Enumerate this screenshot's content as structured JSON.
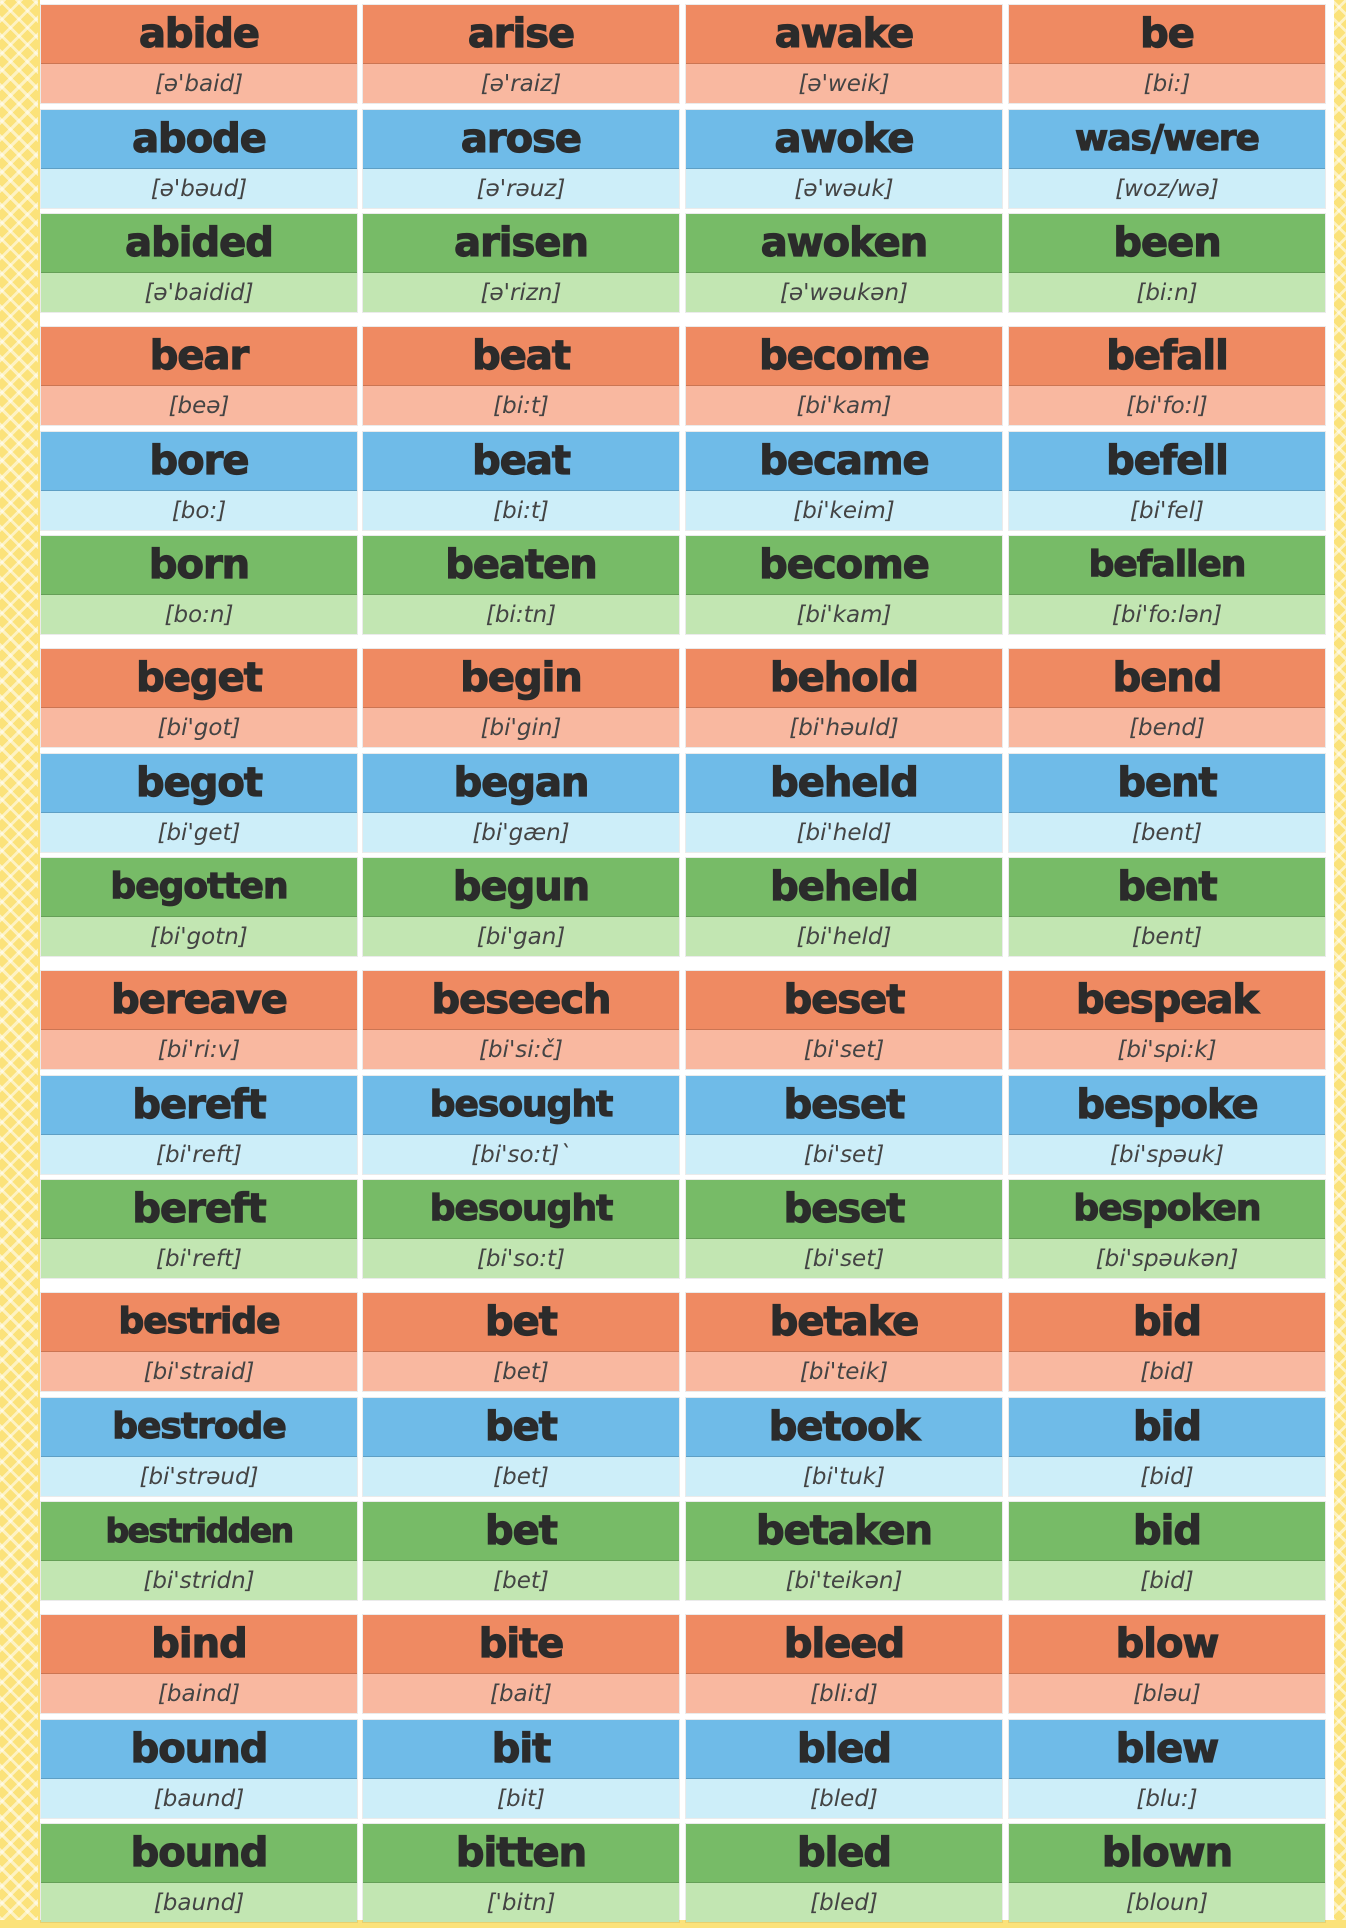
{
  "colors": {
    "base_header": "#ef8a62",
    "base_pron": "#f9b8a0",
    "past_header": "#6fbbe8",
    "past_pron": "#cdeef9",
    "pp_header": "#77bb67",
    "pp_pron": "#c2e6b2",
    "border": "#fbe27a"
  },
  "blocks": [
    {
      "verbs": [
        {
          "base": {
            "word": "abide",
            "pron": "[ə'baid]"
          },
          "past": {
            "word": "abode",
            "pron": "[ə'bəud]"
          },
          "pp": {
            "word": "abided",
            "pron": "[ə'baidid]"
          }
        },
        {
          "base": {
            "word": "arise",
            "pron": "[ə'raiz]"
          },
          "past": {
            "word": "arose",
            "pron": "[ə'rəuz]"
          },
          "pp": {
            "word": "arisen",
            "pron": "[ə'rizn]"
          }
        },
        {
          "base": {
            "word": "awake",
            "pron": "[ə'weik]"
          },
          "past": {
            "word": "awoke",
            "pron": "[ə'wəuk]"
          },
          "pp": {
            "word": "awoken",
            "pron": "[ə'wəukən]"
          }
        },
        {
          "base": {
            "word": "be",
            "pron": "[bi:]"
          },
          "past": {
            "word": "was/were",
            "pron": "[woz/wə]"
          },
          "pp": {
            "word": "been",
            "pron": "[bi:n]"
          }
        }
      ]
    },
    {
      "verbs": [
        {
          "base": {
            "word": "bear",
            "pron": "[beə]"
          },
          "past": {
            "word": "bore",
            "pron": "[bo:]"
          },
          "pp": {
            "word": "born",
            "pron": "[bo:n]"
          }
        },
        {
          "base": {
            "word": "beat",
            "pron": "[bi:t]"
          },
          "past": {
            "word": "beat",
            "pron": "[bi:t]"
          },
          "pp": {
            "word": "beaten",
            "pron": "[bi:tn]"
          }
        },
        {
          "base": {
            "word": "become",
            "pron": "[bi'kam]"
          },
          "past": {
            "word": "became",
            "pron": "[bi'keim]"
          },
          "pp": {
            "word": "become",
            "pron": "[bi'kam]"
          }
        },
        {
          "base": {
            "word": "befall",
            "pron": "[bi'fo:l]"
          },
          "past": {
            "word": "befell",
            "pron": "[bi'fel]"
          },
          "pp": {
            "word": "befallen",
            "pron": "[bi'fo:lən]"
          }
        }
      ]
    },
    {
      "verbs": [
        {
          "base": {
            "word": "beget",
            "pron": "[bi'got]"
          },
          "past": {
            "word": "begot",
            "pron": "[bi'get]"
          },
          "pp": {
            "word": "begotten",
            "pron": "[bi'gotn]"
          }
        },
        {
          "base": {
            "word": "begin",
            "pron": "[bi'gin]"
          },
          "past": {
            "word": "began",
            "pron": "[bi'gæn]"
          },
          "pp": {
            "word": "begun",
            "pron": "[bi'gan]"
          }
        },
        {
          "base": {
            "word": "behold",
            "pron": "[bi'həuld]"
          },
          "past": {
            "word": "beheld",
            "pron": "[bi'held]"
          },
          "pp": {
            "word": "beheld",
            "pron": "[bi'held]"
          }
        },
        {
          "base": {
            "word": "bend",
            "pron": "[bend]"
          },
          "past": {
            "word": "bent",
            "pron": "[bent]"
          },
          "pp": {
            "word": "bent",
            "pron": "[bent]"
          }
        }
      ]
    },
    {
      "verbs": [
        {
          "base": {
            "word": "bereave",
            "pron": "[bi'ri:v]"
          },
          "past": {
            "word": "bereft",
            "pron": "[bi'reft]"
          },
          "pp": {
            "word": "bereft",
            "pron": "[bi'reft]"
          }
        },
        {
          "base": {
            "word": "beseech",
            "pron": "[bi'si:č]"
          },
          "past": {
            "word": "besought",
            "pron": "[bi'so:t]`"
          },
          "pp": {
            "word": "besought",
            "pron": "[bi'so:t]"
          }
        },
        {
          "base": {
            "word": "beset",
            "pron": "[bi'set]"
          },
          "past": {
            "word": "beset",
            "pron": "[bi'set]"
          },
          "pp": {
            "word": "beset",
            "pron": "[bi'set]"
          }
        },
        {
          "base": {
            "word": "bespeak",
            "pron": "[bi'spi:k]"
          },
          "past": {
            "word": "bespoke",
            "pron": "[bi'spəuk]"
          },
          "pp": {
            "word": "bespoken",
            "pron": "[bi'spəukən]"
          }
        }
      ]
    },
    {
      "verbs": [
        {
          "base": {
            "word": "bestride",
            "pron": "[bi'straid]"
          },
          "past": {
            "word": "bestrode",
            "pron": "[bi'strəud]"
          },
          "pp": {
            "word": "bestridden",
            "pron": "[bi'stridn]"
          }
        },
        {
          "base": {
            "word": "bet",
            "pron": "[bet]"
          },
          "past": {
            "word": "bet",
            "pron": "[bet]"
          },
          "pp": {
            "word": "bet",
            "pron": "[bet]"
          }
        },
        {
          "base": {
            "word": "betake",
            "pron": "[bi'teik]"
          },
          "past": {
            "word": "betook",
            "pron": "[bi'tuk]"
          },
          "pp": {
            "word": "betaken",
            "pron": "[bi'teikən]"
          }
        },
        {
          "base": {
            "word": "bid",
            "pron": "[bid]"
          },
          "past": {
            "word": "bid",
            "pron": "[bid]"
          },
          "pp": {
            "word": "bid",
            "pron": "[bid]"
          }
        }
      ]
    },
    {
      "verbs": [
        {
          "base": {
            "word": "bind",
            "pron": "[baind]"
          },
          "past": {
            "word": "bound",
            "pron": "[baund]"
          },
          "pp": {
            "word": "bound",
            "pron": "[baund]"
          }
        },
        {
          "base": {
            "word": "bite",
            "pron": "[bait]"
          },
          "past": {
            "word": "bit",
            "pron": "[bit]"
          },
          "pp": {
            "word": "bitten",
            "pron": "['bitn]"
          }
        },
        {
          "base": {
            "word": "bleed",
            "pron": "[bli:d]"
          },
          "past": {
            "word": "bled",
            "pron": "[bled]"
          },
          "pp": {
            "word": "bled",
            "pron": "[bled]"
          }
        },
        {
          "base": {
            "word": "blow",
            "pron": "[bləu]"
          },
          "past": {
            "word": "blew",
            "pron": "[blu:]"
          },
          "pp": {
            "word": "blown",
            "pron": "[bloun]"
          }
        }
      ]
    }
  ]
}
